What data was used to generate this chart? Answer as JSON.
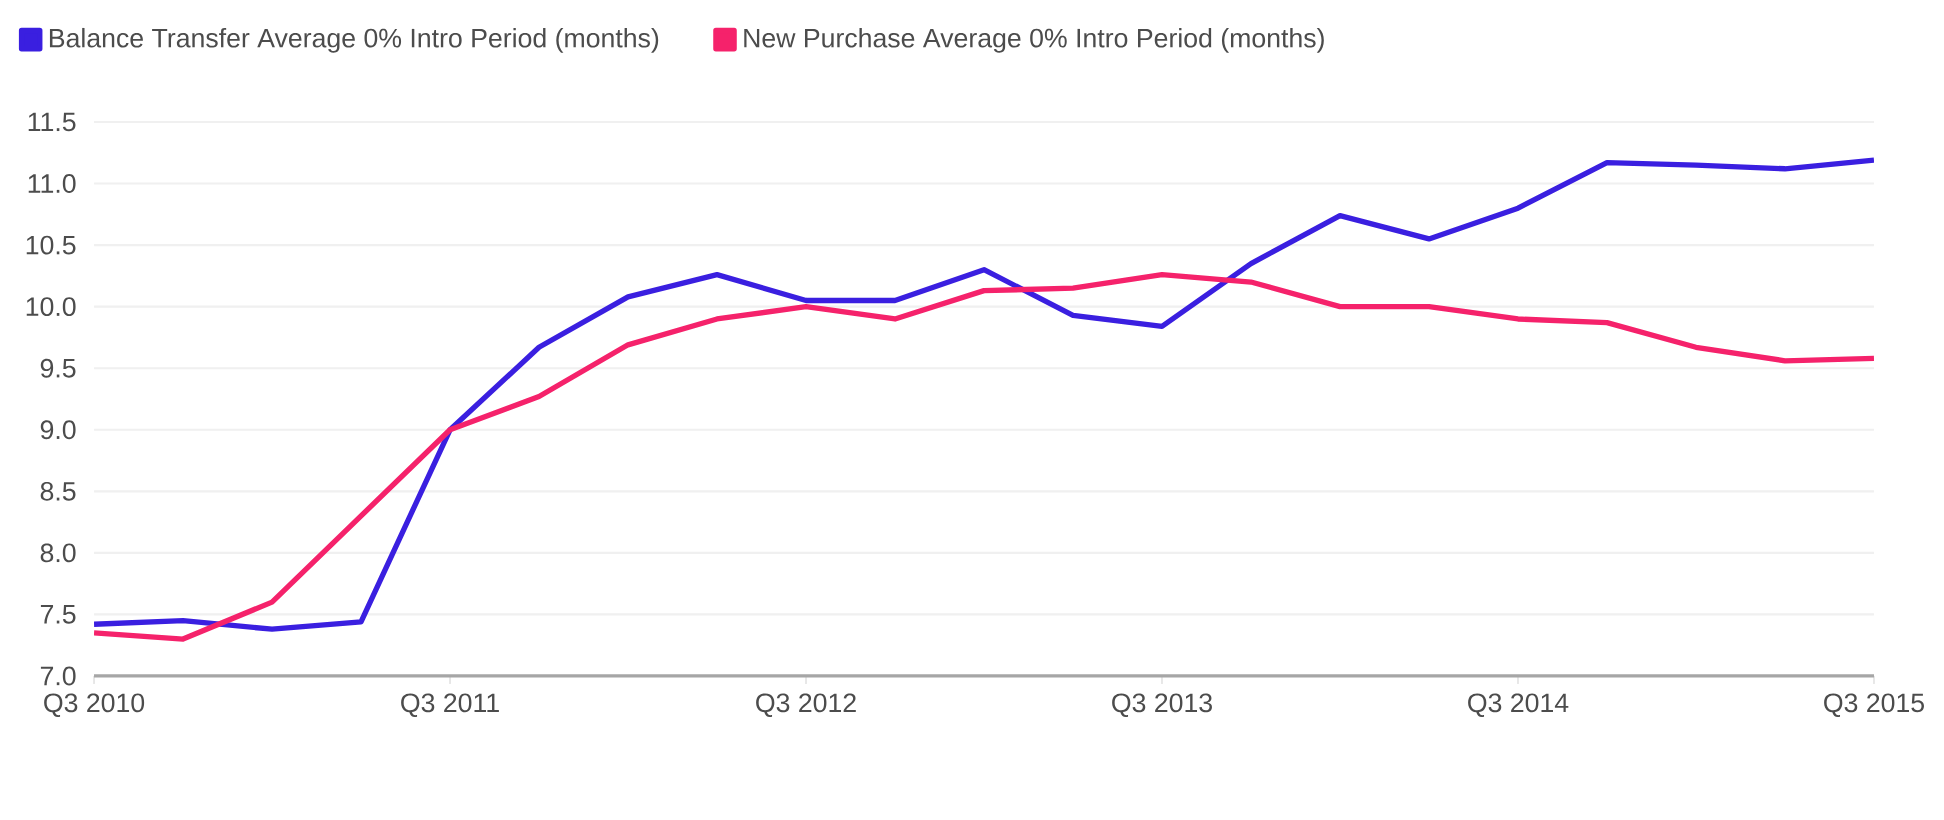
{
  "chart_data": {
    "type": "line",
    "categories": [
      "Q3 2010",
      null,
      null,
      null,
      "Q3 2011",
      null,
      null,
      null,
      "Q3 2012",
      null,
      null,
      null,
      "Q3 2013",
      null,
      null,
      null,
      "Q3 2014",
      null,
      null,
      null,
      "Q3 2015"
    ],
    "series": [
      {
        "name": "Balance Transfer Average 0% Intro Period (months)",
        "color": "#3a1fe0",
        "values": [
          7.42,
          7.45,
          7.38,
          7.44,
          9.0,
          9.67,
          10.08,
          10.26,
          10.05,
          10.05,
          10.3,
          9.93,
          9.84,
          10.35,
          10.74,
          10.55,
          10.8,
          11.17,
          11.15,
          11.12,
          11.19
        ]
      },
      {
        "name": "New Purchase Average 0% Intro Period (months)",
        "color": "#f5226b",
        "values": [
          7.35,
          7.3,
          7.6,
          8.3,
          9.0,
          9.27,
          9.69,
          9.9,
          10.0,
          9.9,
          10.13,
          10.15,
          10.26,
          10.2,
          10.0,
          10.0,
          9.9,
          9.87,
          9.67,
          9.56,
          9.58
        ]
      }
    ],
    "ylim": [
      7.0,
      11.5
    ],
    "yticks": [
      {
        "value": 7.0,
        "label": "7.0"
      },
      {
        "value": 7.5,
        "label": "7.5"
      },
      {
        "value": 8.0,
        "label": "8.0"
      },
      {
        "value": 8.5,
        "label": "8.5"
      },
      {
        "value": 9.0,
        "label": "9.0"
      },
      {
        "value": 9.5,
        "label": "9.5"
      },
      {
        "value": 10.0,
        "label": "10.0"
      },
      {
        "value": 10.5,
        "label": "10.5"
      },
      {
        "value": 11.0,
        "label": "11.0"
      },
      {
        "value": 11.5,
        "label": "11.5"
      }
    ],
    "grid": "y",
    "legend": "top left",
    "marker": "none",
    "line_style": "solid"
  }
}
